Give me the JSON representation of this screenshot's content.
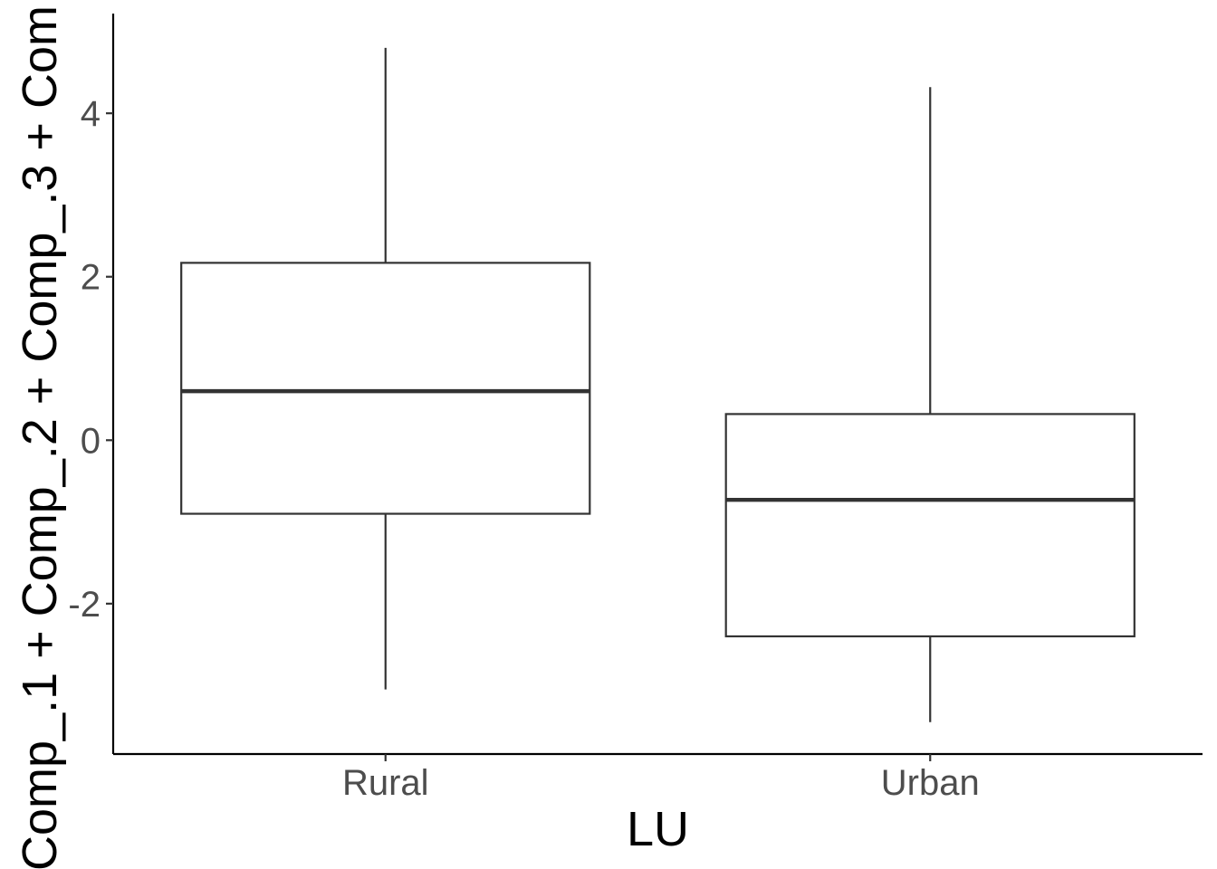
{
  "chart_data": {
    "type": "boxplot",
    "title": "",
    "xlabel": "LU",
    "ylabel": "Comp_.1 + Comp_.2 + Comp_.3 + Com",
    "categories": [
      "Rural",
      "Urban"
    ],
    "boxes": [
      {
        "category": "Rural",
        "whisker_low": -3.05,
        "q1": -0.9,
        "median": 0.6,
        "q3": 2.17,
        "whisker_high": 4.8
      },
      {
        "category": "Urban",
        "whisker_low": -3.45,
        "q1": -2.4,
        "median": -0.73,
        "q3": 0.32,
        "whisker_high": 4.32
      }
    ],
    "yticks": [
      -2,
      0,
      2,
      4
    ],
    "ylim": [
      -3.84,
      5.22
    ],
    "grid": false,
    "legend": "none",
    "colors": {
      "box_line": "#333333",
      "box_fill": "#ffffff",
      "axis": "#000000",
      "tick_text": "#4d4d4d"
    }
  }
}
